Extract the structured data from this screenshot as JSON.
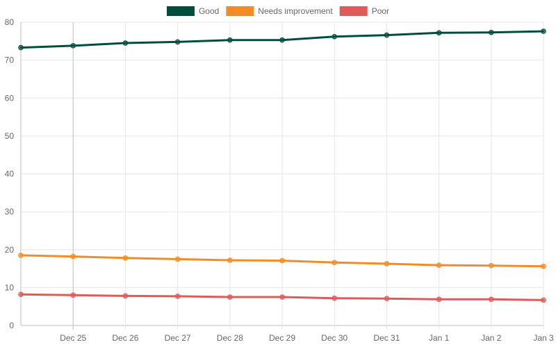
{
  "chart_data": {
    "type": "line",
    "title": "",
    "xlabel": "",
    "ylabel": "",
    "x_ticks": [
      "Dec 25",
      "Dec 26",
      "Dec 27",
      "Dec 28",
      "Dec 29",
      "Dec 30",
      "Dec 31",
      "Jan 1",
      "Jan 2",
      "Jan 3"
    ],
    "ylim": [
      0,
      80
    ],
    "y_ticks": [
      0,
      10,
      20,
      30,
      40,
      50,
      60,
      70,
      80
    ],
    "grid": true,
    "legend_position": "top-center",
    "series": [
      {
        "name": "Good",
        "color": "#004d40",
        "points": [
          {
            "x": "Dec 24",
            "y": 73.3
          },
          {
            "x": "Dec 25",
            "y": 73.8
          },
          {
            "x": "Dec 26",
            "y": 74.5
          },
          {
            "x": "Dec 27",
            "y": 74.8
          },
          {
            "x": "Dec 28",
            "y": 75.3
          },
          {
            "x": "Dec 29",
            "y": 75.3
          },
          {
            "x": "Dec 30",
            "y": 76.2
          },
          {
            "x": "Dec 31",
            "y": 76.6
          },
          {
            "x": "Jan 1",
            "y": 77.2
          },
          {
            "x": "Jan 2",
            "y": 77.3
          },
          {
            "x": "Jan 3",
            "y": 77.6
          }
        ]
      },
      {
        "name": "Needs improvement",
        "color": "#f28c28",
        "points": [
          {
            "x": "Dec 24",
            "y": 18.5
          },
          {
            "x": "Dec 25",
            "y": 18.2
          },
          {
            "x": "Dec 26",
            "y": 17.8
          },
          {
            "x": "Dec 27",
            "y": 17.5
          },
          {
            "x": "Dec 28",
            "y": 17.2
          },
          {
            "x": "Dec 29",
            "y": 17.1
          },
          {
            "x": "Dec 30",
            "y": 16.6
          },
          {
            "x": "Dec 31",
            "y": 16.3
          },
          {
            "x": "Jan 1",
            "y": 15.9
          },
          {
            "x": "Jan 2",
            "y": 15.8
          },
          {
            "x": "Jan 3",
            "y": 15.6
          }
        ]
      },
      {
        "name": "Poor",
        "color": "#e05a5a",
        "points": [
          {
            "x": "Dec 24",
            "y": 8.2
          },
          {
            "x": "Dec 25",
            "y": 8.0
          },
          {
            "x": "Dec 26",
            "y": 7.8
          },
          {
            "x": "Dec 27",
            "y": 7.7
          },
          {
            "x": "Dec 28",
            "y": 7.5
          },
          {
            "x": "Dec 29",
            "y": 7.5
          },
          {
            "x": "Dec 30",
            "y": 7.2
          },
          {
            "x": "Dec 31",
            "y": 7.1
          },
          {
            "x": "Jan 1",
            "y": 6.9
          },
          {
            "x": "Jan 2",
            "y": 6.9
          },
          {
            "x": "Jan 3",
            "y": 6.7
          }
        ]
      }
    ]
  }
}
